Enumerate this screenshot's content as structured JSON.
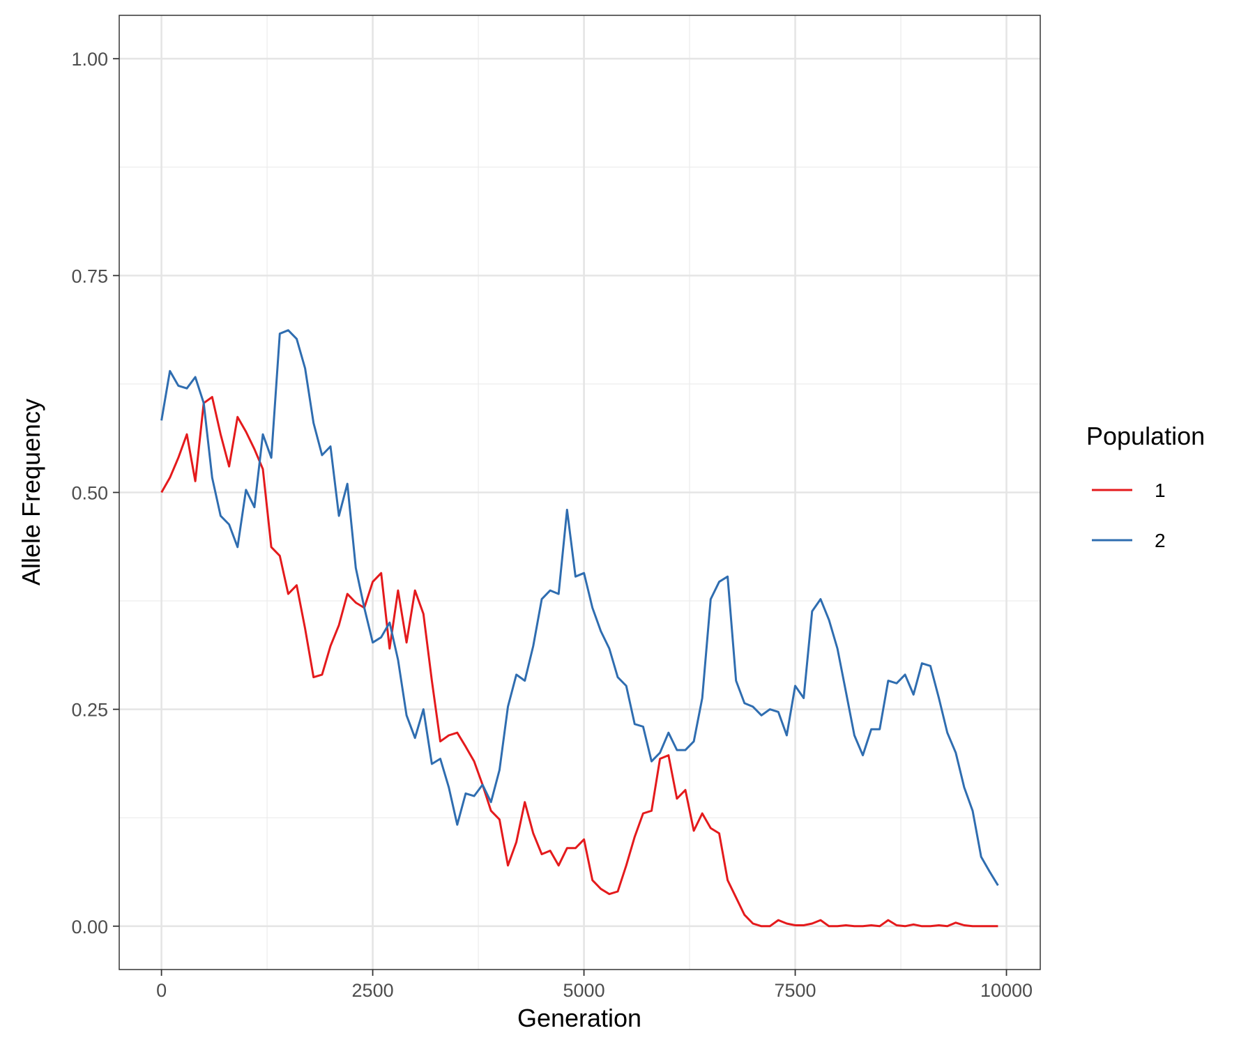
{
  "chart_data": {
    "type": "line",
    "title": "",
    "xlabel": "Generation",
    "ylabel": "Allele Frequency",
    "xlim": [
      -500,
      10400
    ],
    "ylim": [
      -0.05,
      1.05
    ],
    "xticks": [
      0,
      2500,
      5000,
      7500,
      10000
    ],
    "xtick_labels": [
      "0",
      "2500",
      "5000",
      "7500",
      "10000"
    ],
    "yticks": [
      0,
      0.25,
      0.5,
      0.75,
      1.0
    ],
    "ytick_labels": [
      "0.00",
      "0.25",
      "0.50",
      "0.75",
      "1.00"
    ],
    "grid": true,
    "legend": {
      "title": "Population",
      "placement": "right"
    },
    "x": [
      0,
      100,
      200,
      300,
      400,
      500,
      600,
      700,
      800,
      900,
      1000,
      1100,
      1200,
      1300,
      1400,
      1500,
      1600,
      1700,
      1800,
      1900,
      2000,
      2100,
      2200,
      2300,
      2400,
      2500,
      2600,
      2700,
      2800,
      2900,
      3000,
      3100,
      3200,
      3300,
      3400,
      3500,
      3600,
      3700,
      3800,
      3900,
      4000,
      4100,
      4200,
      4300,
      4400,
      4500,
      4600,
      4700,
      4800,
      4900,
      5000,
      5100,
      5200,
      5300,
      5400,
      5500,
      5600,
      5700,
      5800,
      5900,
      6000,
      6100,
      6200,
      6300,
      6400,
      6500,
      6600,
      6700,
      6800,
      6900,
      7000,
      7100,
      7200,
      7300,
      7400,
      7500,
      7600,
      7700,
      7800,
      7900,
      8000,
      8100,
      8200,
      8300,
      8400,
      8500,
      8600,
      8700,
      8800,
      8900,
      9000,
      9100,
      9200,
      9300,
      9400,
      9500,
      9600,
      9700,
      9800,
      9900
    ],
    "series": [
      {
        "name": "1",
        "color": "#E41A1C",
        "values": [
          0.5,
          0.517,
          0.54,
          0.567,
          0.513,
          0.603,
          0.61,
          0.567,
          0.53,
          0.587,
          0.57,
          0.55,
          0.527,
          0.437,
          0.427,
          0.383,
          0.393,
          0.343,
          0.287,
          0.29,
          0.323,
          0.347,
          0.383,
          0.373,
          0.367,
          0.397,
          0.407,
          0.32,
          0.387,
          0.327,
          0.387,
          0.36,
          0.283,
          0.213,
          0.22,
          0.223,
          0.207,
          0.19,
          0.163,
          0.133,
          0.123,
          0.07,
          0.097,
          0.143,
          0.107,
          0.083,
          0.087,
          0.07,
          0.09,
          0.09,
          0.1,
          0.053,
          0.043,
          0.037,
          0.04,
          0.07,
          0.103,
          0.13,
          0.133,
          0.193,
          0.197,
          0.147,
          0.157,
          0.11,
          0.13,
          0.113,
          0.107,
          0.053,
          0.033,
          0.013,
          0.003,
          0.0,
          0.0,
          0.007,
          0.003,
          0.001,
          0.001,
          0.003,
          0.007,
          0.0,
          0.0,
          0.001,
          0.0,
          0.0,
          0.001,
          0.0,
          0.007,
          0.001,
          0.0,
          0.002,
          0.0,
          0.0,
          0.001,
          0.0,
          0.004,
          0.001,
          0.0,
          0.0,
          0.0,
          0.0
        ]
      },
      {
        "name": "2",
        "color": "#2F6DB0",
        "values": [
          0.583,
          0.64,
          0.623,
          0.62,
          0.633,
          0.603,
          0.517,
          0.473,
          0.463,
          0.437,
          0.503,
          0.483,
          0.567,
          0.54,
          0.683,
          0.687,
          0.677,
          0.643,
          0.58,
          0.543,
          0.553,
          0.473,
          0.51,
          0.413,
          0.367,
          0.327,
          0.333,
          0.35,
          0.307,
          0.243,
          0.217,
          0.25,
          0.187,
          0.193,
          0.16,
          0.117,
          0.153,
          0.15,
          0.163,
          0.143,
          0.18,
          0.253,
          0.29,
          0.283,
          0.323,
          0.377,
          0.387,
          0.383,
          0.48,
          0.403,
          0.407,
          0.367,
          0.34,
          0.32,
          0.287,
          0.277,
          0.233,
          0.23,
          0.19,
          0.2,
          0.223,
          0.203,
          0.203,
          0.213,
          0.263,
          0.377,
          0.397,
          0.403,
          0.283,
          0.257,
          0.253,
          0.243,
          0.25,
          0.247,
          0.22,
          0.277,
          0.263,
          0.363,
          0.377,
          0.353,
          0.32,
          0.27,
          0.22,
          0.197,
          0.227,
          0.227,
          0.283,
          0.28,
          0.29,
          0.267,
          0.303,
          0.3,
          0.263,
          0.223,
          0.2,
          0.16,
          0.133,
          0.08,
          0.063,
          0.047
        ]
      }
    ]
  }
}
